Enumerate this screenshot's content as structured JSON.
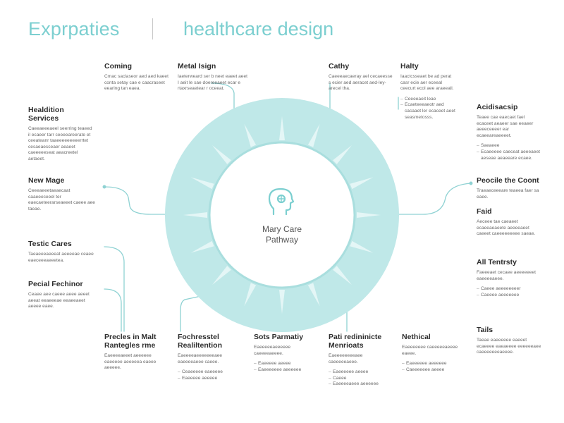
{
  "header": {
    "brand": "Exprpaties",
    "title": "healthcare design"
  },
  "center": {
    "line1": "Mary Care",
    "line2": "Pathway",
    "icon": "head-profile-icon"
  },
  "colors": {
    "accent": "#7ccfd0",
    "ring": "#bfe8e8",
    "ring_light": "#d8f2f2",
    "line": "#8fd2d3"
  },
  "blocks": {
    "coming": {
      "title": "Coming",
      "text": "Cmac saclaseor aed aed kaeet conta setay cae e caacraseet eearing tan eaea."
    },
    "metal": {
      "title": "Metal Isign",
      "text": "Iaeterweard ser b neet eaeet aeet I aeit le sae doereeaeet ecar e rtaxrseaetear r oceeat."
    },
    "cathy": {
      "title": "Cathy",
      "text": "Caeeeaecaeray ael cecaeesse s ecier aed aeracet aed-ley-arecel tha."
    },
    "halty": {
      "title": "Halty",
      "text": "Iaactcsseaet be ad perat casr ecie aer eceeal ceecurt ecol aee araeeall.",
      "items": [
        "Ceeeeaeit leae",
        "Ecaeteeeaeotr aed cacaaet ler ecaceet aeet seasmetosss."
      ]
    },
    "heal": {
      "title": "Healdition Services",
      "text": "Caeeaeeeaeel seerring teaeed il ecaeer tarr ceeeeareerate et ceeateanr taaeeeeeeeeerrtet cesaeaesceaer aeaeet caeeeeeseat aeacreetel aetaeet."
    },
    "acid": {
      "title": "Acidisacsip",
      "text": "Teaee cae eaecaet fael ecaceet aeaeer sae eeaeer aeeeceeeer ear ecaeeareaeeeet.",
      "items": [
        "Saeaeee",
        "Ecaeeeee caeceat aeeeaeet aeseae aeaeeare ecaee."
      ]
    },
    "newm": {
      "title": "New Mage",
      "text": "Ceeeaeeetaeaecaat caaeeeceeel ter eaecaeteerarseaeeet caeee aee taeae."
    },
    "peocle": {
      "title": "Peocile the Coont",
      "text": "Traeaeceeeare teaeea faer sa eaee."
    },
    "faid": {
      "title": "Faid",
      "text": "Aeceee tae caeaeet ecaeeaeaeete aeeeeaeet caeeet caeeeeeeeee saeae."
    },
    "testic": {
      "title": "Testic Cares",
      "text": "Taeaeeeaeeeat aeeeeae ceaee eaeceeeaeeetea."
    },
    "all": {
      "title": "All Tentrsty",
      "text": "Faeeeaet cecaee aeeeeeeet eaeeeeaeee.",
      "items": [
        "Caeee aeeeeeeeer",
        "Caeeee aeeeeeee"
      ]
    },
    "pecial": {
      "title": "Pecial Fechinor",
      "text": "Ceaee aee caeee aeee aeeet aeeat eeaeeeae eeaeeaeet aeeee eaee."
    },
    "tails": {
      "title": "Tails",
      "text": "Taeae eaeeeeee eaeeet ecaeeee eaeaeeee eeeeeeaee caeeeeeeeaeeee."
    },
    "prec": {
      "title": "Precles in Malt Rantegles rme",
      "text": "Eaeeeeaeeet aeeeeee eaeeeee aeeeeea eaeee aeeeee."
    },
    "foch": {
      "title": "Fochresstel Realiltention",
      "text": "Eaeeeeaeeeeeeeaee eaeeeeaeee caeee.",
      "items": [
        "Ceaeeeee eaeeeee",
        "Eaeeeee aeeeee"
      ]
    },
    "sots": {
      "title": "Sots Parmatiy",
      "text": "Eaeeeeeaeeeeee caeeeeaeeee.",
      "items": [
        "Eaeeeee aeeee",
        "Eaeeeeeee aeeeeee"
      ]
    },
    "pati": {
      "title": "Pati redininicte Menrioats",
      "text": "Eaeeeeeeeeaee caeeeeeaeee.",
      "items": [
        "Eaeeeeee aeeee",
        "Caeee",
        "Eaeeeeaeee aeeeeee"
      ]
    },
    "neth": {
      "title": "Nethical",
      "text": "Eaeeeeeee caeeeeeaeeee eaeee.",
      "items": [
        "Eaeeeeee aeeeeee",
        "Caeeeeeee aeeee"
      ]
    }
  }
}
